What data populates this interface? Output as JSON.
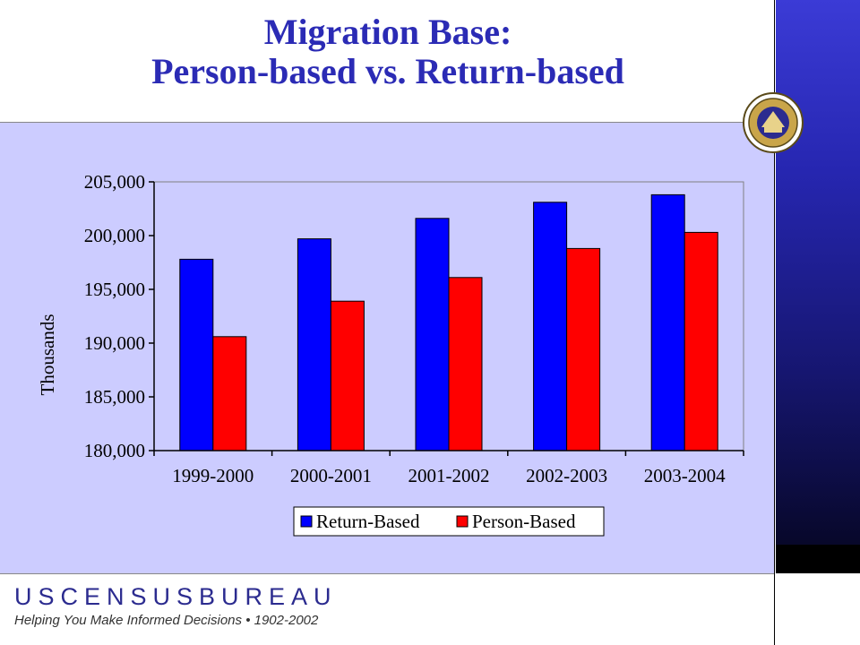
{
  "slide": {
    "title_line1": "Migration Base:",
    "title_line2": "Person-based vs. Return-based"
  },
  "branding": {
    "logo_text": "USCENSUSBUREAU",
    "tagline": "Helping You Make Informed Decisions • 1902-2002",
    "seal_icon": "department-of-commerce-seal-icon"
  },
  "colors": {
    "return_based": "#0000ff",
    "person_based": "#ff0000",
    "title": "#2b2bb5",
    "plot_bg": "#ccccff"
  },
  "chart_data": {
    "type": "bar",
    "categories": [
      "1999-2000",
      "2000-2001",
      "2001-2002",
      "2002-2003",
      "2003-2004"
    ],
    "series": [
      {
        "name": "Return-Based",
        "values": [
          197800,
          199700,
          201600,
          203100,
          203800
        ]
      },
      {
        "name": "Person-Based",
        "values": [
          190600,
          193900,
          196100,
          198800,
          200300
        ]
      }
    ],
    "ylabel": "Thousands",
    "ylim": [
      180000,
      205000
    ],
    "yticks": [
      180000,
      185000,
      190000,
      195000,
      200000,
      205000
    ],
    "ytick_labels": [
      "180,000",
      "185,000",
      "190,000",
      "195,000",
      "200,000",
      "205,000"
    ],
    "legend_position": "bottom",
    "grid": false
  }
}
